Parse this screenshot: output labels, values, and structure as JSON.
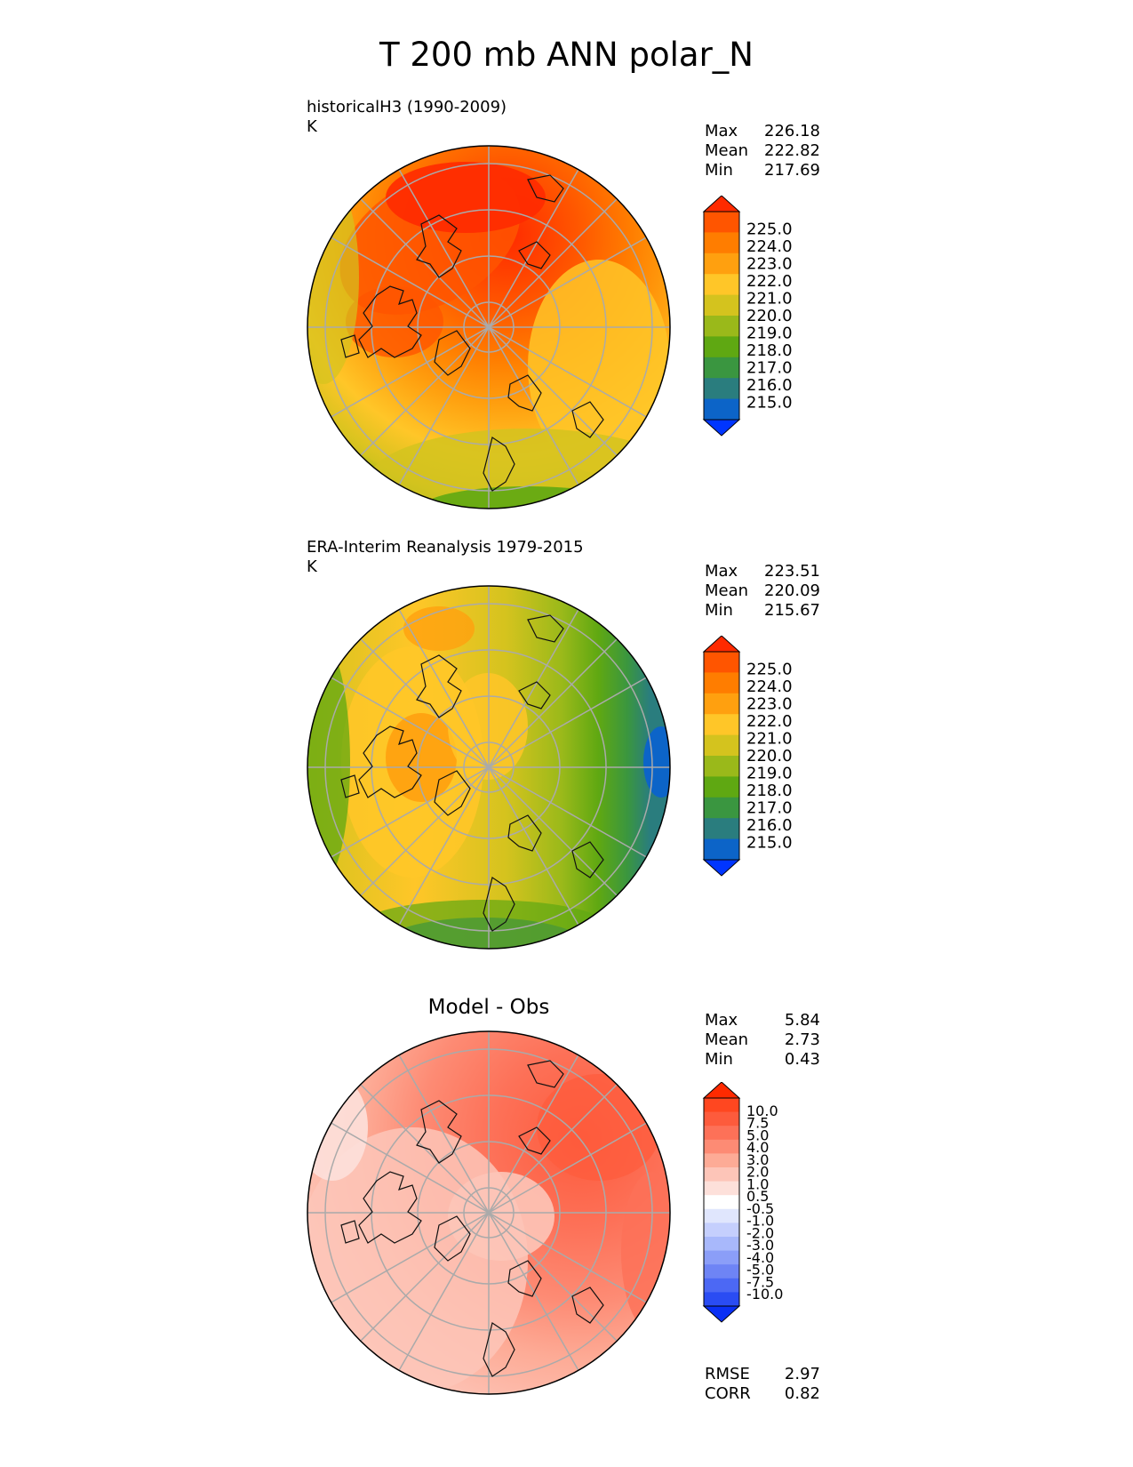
{
  "title": "T 200 mb ANN polar_N",
  "panels": [
    {
      "id": "test",
      "title_lines": [
        "historicalH3 (1990-2009)",
        "K"
      ],
      "stats": {
        "max_label": "Max",
        "max": "226.18",
        "mean_label": "Mean",
        "mean": "222.82",
        "min_label": "Min",
        "min": "217.69"
      },
      "colorbar": {
        "labels": [
          "225.0",
          "224.0",
          "223.0",
          "222.0",
          "221.0",
          "220.0",
          "219.0",
          "218.0",
          "217.0",
          "216.0",
          "215.0"
        ],
        "colors": [
          "#ff2a00",
          "#ff5500",
          "#ff7d00",
          "#ffa00f",
          "#ffc628",
          "#d4c31e",
          "#9ab91a",
          "#5fa812",
          "#3a9640",
          "#2a7d7e",
          "#0c64c8",
          "#0035ff"
        ]
      }
    },
    {
      "id": "ref",
      "title_lines": [
        "ERA-Interim Reanalysis 1979-2015",
        "K"
      ],
      "stats": {
        "max_label": "Max",
        "max": "223.51",
        "mean_label": "Mean",
        "mean": "220.09",
        "min_label": "Min",
        "min": "215.67"
      },
      "colorbar": {
        "labels": [
          "225.0",
          "224.0",
          "223.0",
          "222.0",
          "221.0",
          "220.0",
          "219.0",
          "218.0",
          "217.0",
          "216.0",
          "215.0"
        ],
        "colors": [
          "#ff2a00",
          "#ff5500",
          "#ff7d00",
          "#ffa00f",
          "#ffc628",
          "#d4c31e",
          "#9ab91a",
          "#5fa812",
          "#3a9640",
          "#2a7d7e",
          "#0c64c8",
          "#0035ff"
        ]
      }
    },
    {
      "id": "diff",
      "center_title": "Model - Obs",
      "stats": {
        "max_label": "Max",
        "max": "5.84",
        "mean_label": "Mean",
        "mean": "2.73",
        "min_label": "Min",
        "min": "0.43"
      },
      "colorbar": {
        "labels": [
          "10.0",
          "7.5",
          "5.0",
          "4.0",
          "3.0",
          "2.0",
          "1.0",
          "0.5",
          "-0.5",
          "-1.0",
          "-2.0",
          "-3.0",
          "-4.0",
          "-5.0",
          "-7.5",
          "-10.0"
        ],
        "colors": [
          "#ff2a00",
          "#ff4720",
          "#fd5b3c",
          "#fd7158",
          "#fd8b74",
          "#fdab96",
          "#fdc5b8",
          "#fde0da",
          "#ffffff",
          "#e0e6fd",
          "#c5cffd",
          "#a8b8fb",
          "#8b9ef8",
          "#6e84f5",
          "#4c68f4",
          "#2a4cf3",
          "#0a30f5"
        ]
      },
      "bottom": {
        "rmse_label": "RMSE",
        "rmse": "2.97",
        "corr_label": "CORR",
        "corr": "0.82"
      }
    }
  ]
}
